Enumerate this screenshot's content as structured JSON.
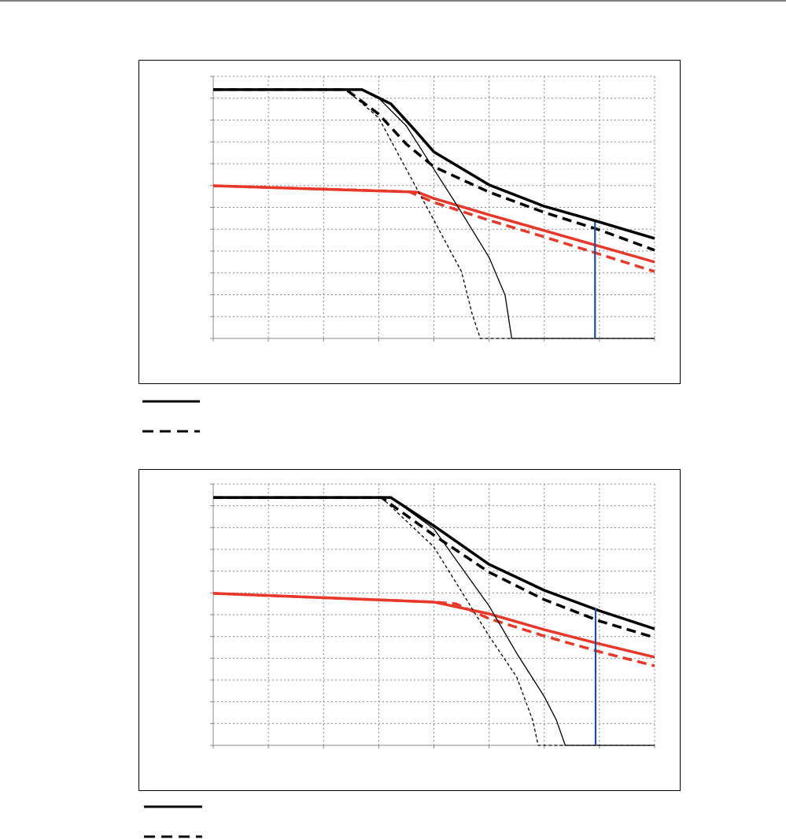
{
  "chart_data": [
    {
      "type": "line",
      "xlim": [
        0,
        8
      ],
      "ylim": [
        0,
        12
      ],
      "xticks": [
        0,
        1,
        2,
        3,
        4,
        5,
        6,
        7,
        8
      ],
      "yticks": [
        0,
        1,
        2,
        3,
        4,
        5,
        6,
        7,
        8,
        9,
        10,
        11,
        12
      ],
      "grid": true,
      "tick_labels": false,
      "series": [
        {
          "color": "#000000",
          "style": "solid",
          "weight": "thick",
          "x": [
            0,
            2.7,
            3.22,
            3.65,
            4,
            5,
            6,
            7,
            8
          ],
          "values": [
            11.39,
            11.39,
            10.74,
            9.55,
            8.54,
            7.03,
            6.05,
            5.33,
            4.58
          ]
        },
        {
          "color": "#000000",
          "style": "dashed",
          "weight": "thick",
          "x": [
            0,
            2.41,
            3,
            3.5,
            4,
            5,
            6,
            7,
            8
          ],
          "values": [
            11.39,
            11.39,
            10.27,
            8.9,
            7.86,
            6.7,
            5.77,
            4.97,
            4.04
          ]
        },
        {
          "color": "#e8382a",
          "style": "solid",
          "weight": "thick",
          "x": [
            0,
            3.7,
            4,
            5,
            6,
            7,
            8
          ],
          "values": [
            6.99,
            6.7,
            6.41,
            5.66,
            4.94,
            4.22,
            3.5
          ]
        },
        {
          "color": "#e8382a",
          "style": "dashed",
          "weight": "thick",
          "x": [
            0,
            3.55,
            4,
            5,
            6,
            7,
            8
          ],
          "values": [
            6.99,
            6.72,
            6.23,
            5.41,
            4.65,
            3.86,
            3.06
          ]
        },
        {
          "color": "#000000",
          "style": "solid",
          "weight": "thin",
          "x": [
            2.7,
            3,
            3.5,
            4,
            4.5,
            5,
            5.29,
            5.41,
            8
          ],
          "values": [
            11.39,
            11.0,
            9.73,
            7.75,
            5.77,
            3.71,
            1.98,
            0,
            0
          ]
        },
        {
          "color": "#000000",
          "style": "dashed",
          "weight": "thin",
          "x": [
            2.41,
            3,
            3.5,
            4,
            4.5,
            4.69,
            4.84,
            8
          ],
          "values": [
            11.39,
            10.1,
            7.75,
            5.41,
            3.06,
            1.15,
            0,
            0
          ]
        },
        {
          "color": "#1f4e9c",
          "style": "solid",
          "weight": "medium",
          "x": [
            6.92,
            6.92
          ],
          "values": [
            0,
            5.33
          ]
        }
      ]
    },
    {
      "type": "line",
      "xlim": [
        0,
        8
      ],
      "ylim": [
        0,
        12
      ],
      "xticks": [
        0,
        1,
        2,
        3,
        4,
        5,
        6,
        7,
        8
      ],
      "yticks": [
        0,
        1,
        2,
        3,
        4,
        5,
        6,
        7,
        8,
        9,
        10,
        11,
        12
      ],
      "grid": true,
      "tick_labels": false,
      "series": [
        {
          "color": "#000000",
          "style": "solid",
          "weight": "thick",
          "x": [
            0,
            3.22,
            4,
            5,
            6,
            7,
            8
          ],
          "values": [
            11.38,
            11.38,
            10.08,
            8.31,
            7.12,
            6.18,
            5.35
          ]
        },
        {
          "color": "#000000",
          "style": "dashed",
          "weight": "thick",
          "x": [
            0,
            3.05,
            4,
            5,
            6,
            7,
            8
          ],
          "values": [
            11.38,
            11.38,
            9.65,
            7.95,
            6.69,
            5.71,
            4.95
          ]
        },
        {
          "color": "#e8382a",
          "style": "solid",
          "weight": "thick",
          "x": [
            0,
            4,
            5,
            6,
            7,
            8
          ],
          "values": [
            6.98,
            6.58,
            6.04,
            5.31,
            4.66,
            4.05
          ]
        },
        {
          "color": "#e8382a",
          "style": "dashed",
          "weight": "thick",
          "x": [
            0,
            4,
            4.4,
            5,
            6,
            7,
            8
          ],
          "values": [
            6.98,
            6.58,
            6.5,
            5.82,
            5.02,
            4.3,
            3.65
          ]
        },
        {
          "color": "#000000",
          "style": "solid",
          "weight": "thin",
          "x": [
            3.22,
            4,
            5,
            5.5,
            6,
            6.22,
            6.38,
            8
          ],
          "values": [
            11.38,
            9.94,
            6.4,
            4.23,
            2.24,
            1.16,
            0,
            0
          ]
        },
        {
          "color": "#000000",
          "style": "dashed",
          "weight": "thin",
          "x": [
            3.05,
            4,
            5,
            5.5,
            5.79,
            5.89,
            8
          ],
          "values": [
            11.38,
            9.11,
            5.02,
            3.14,
            1.16,
            0,
            0
          ]
        },
        {
          "color": "#1f4e9c",
          "style": "solid",
          "weight": "medium",
          "x": [
            6.93,
            6.93
          ],
          "values": [
            0,
            6.29
          ]
        }
      ]
    }
  ]
}
